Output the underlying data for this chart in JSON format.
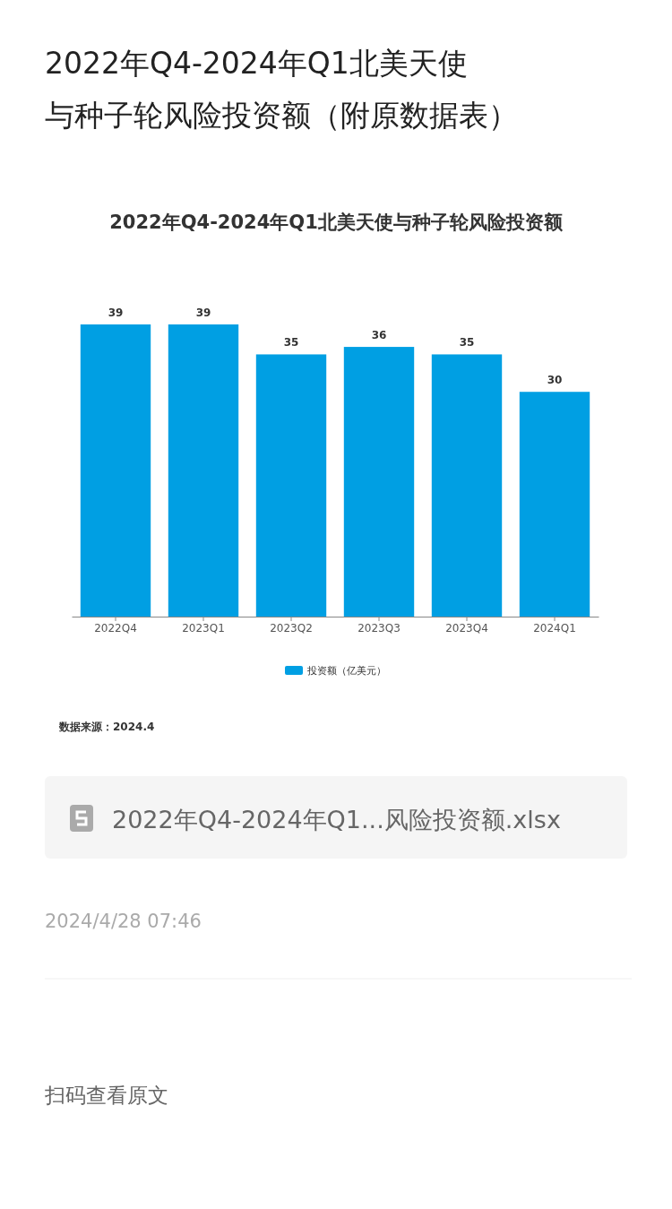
{
  "chart_data": {
    "type": "bar",
    "title": "2022年Q4-2024年Q1北美天使与种子轮风险投资额（附原数据表）",
    "subtitle": "2022年Q4-2024年Q1北美天使与种子轮风险投资额",
    "categories": [
      "2022Q4",
      "2023Q1",
      "2023Q2",
      "2023Q3",
      "2023Q4",
      "2024Q1"
    ],
    "series": [
      {
        "name": "投资额（亿美元）",
        "color": "#009fe3",
        "values": [
          39,
          39,
          35,
          36,
          35,
          30
        ]
      }
    ],
    "data_labels": true,
    "legend": "bottom",
    "grid": false,
    "annotations": [
      "数据来源：2024.4",
      "2022年Q4-2024年Q1...风险投资额.xlsx",
      "2024/4/28 07:46",
      "扫码查看原文"
    ]
  }
}
